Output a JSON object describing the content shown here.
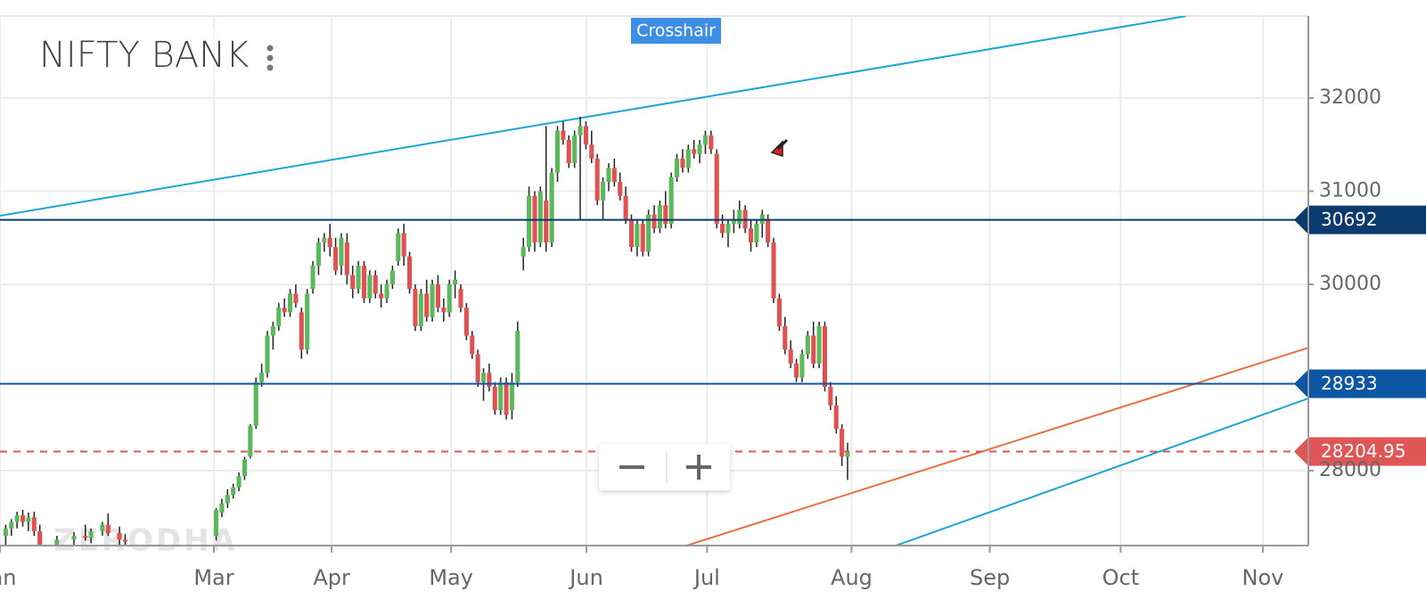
{
  "chart_data": {
    "type": "candlestick",
    "title": "NIFTY BANK",
    "crosshair_label": "Crosshair",
    "watermark": "ZERODHA",
    "up_color": "#5cb85c",
    "down_color": "#e05252",
    "grid": true,
    "xlim": [
      0,
      230
    ],
    "xticks": [
      {
        "value": 0,
        "label": "Jan"
      },
      {
        "value": 37.6,
        "label": "Mar"
      },
      {
        "value": 58.3,
        "label": "Apr"
      },
      {
        "value": 79.3,
        "label": "May"
      },
      {
        "value": 103.1,
        "label": "Jun"
      },
      {
        "value": 124.3,
        "label": "Jul"
      },
      {
        "value": 149.7,
        "label": "Aug"
      },
      {
        "value": 174,
        "label": "Sep"
      },
      {
        "value": 197,
        "label": "Oct"
      },
      {
        "value": 222,
        "label": "Nov"
      }
    ],
    "ylim": [
      27196,
      32880
    ],
    "yticks": [
      28000,
      30000,
      31000,
      32000
    ],
    "trend_lines": [
      {
        "color": "#1ea5d4",
        "x": [
          0,
          208.5
        ],
        "y": [
          30737,
          32880
        ]
      },
      {
        "color": "#e8703f",
        "x": [
          120.7,
          230
        ],
        "y": [
          27196,
          29320
        ]
      },
      {
        "color": "#1ea5d4",
        "x": [
          157.5,
          230
        ],
        "y": [
          27196,
          28775
        ]
      }
    ],
    "price_lines": [
      {
        "value": 30692,
        "color": "#0b3a6e",
        "dashed": false
      },
      {
        "value": 28933,
        "color": "#0d56a3",
        "dashed": false
      },
      {
        "value": 28204.95,
        "color": "#e05555",
        "dashed": true
      }
    ],
    "candles": [
      [
        1,
        27300,
        27420,
        27200,
        27380
      ],
      [
        2,
        27380,
        27480,
        27300,
        27450
      ],
      [
        3,
        27450,
        27560,
        27380,
        27520
      ],
      [
        4,
        27520,
        27580,
        27400,
        27450
      ],
      [
        5,
        27450,
        27550,
        27350,
        27500
      ],
      [
        6,
        27500,
        27560,
        27300,
        27350
      ],
      [
        7,
        27350,
        27420,
        27150,
        27200
      ],
      [
        10,
        27200,
        27300,
        27150,
        27260
      ],
      [
        13,
        27260,
        27340,
        27200,
        27300
      ],
      [
        15,
        27300,
        27420,
        27250,
        27280
      ],
      [
        16,
        27280,
        27380,
        27220,
        27350
      ],
      [
        18,
        27350,
        27450,
        27300,
        27420
      ],
      [
        19,
        27420,
        27540,
        27300,
        27330
      ],
      [
        21,
        27330,
        27400,
        27200,
        27260
      ],
      [
        22,
        27260,
        27320,
        27200,
        27240
      ],
      [
        38,
        27300,
        27600,
        27250,
        27580
      ],
      [
        39,
        27550,
        27700,
        27500,
        27650
      ],
      [
        40,
        27650,
        27800,
        27600,
        27740
      ],
      [
        41,
        27740,
        27860,
        27700,
        27820
      ],
      [
        42,
        27820,
        27980,
        27780,
        27940
      ],
      [
        43,
        27940,
        28150,
        27900,
        28120
      ],
      [
        44,
        28150,
        28500,
        28130,
        28480
      ],
      [
        45,
        28480,
        29000,
        28450,
        28950
      ],
      [
        46,
        28950,
        29150,
        28900,
        29050
      ],
      [
        47,
        29050,
        29500,
        29000,
        29450
      ],
      [
        48,
        29450,
        29600,
        29300,
        29550
      ],
      [
        49,
        29550,
        29800,
        29500,
        29750
      ],
      [
        50,
        29750,
        29850,
        29650,
        29700
      ],
      [
        51,
        29700,
        29950,
        29650,
        29900
      ],
      [
        52,
        29900,
        30000,
        29750,
        29800
      ],
      [
        53,
        29700,
        29750,
        29200,
        29300
      ],
      [
        54,
        29300,
        29950,
        29250,
        29900
      ],
      [
        55,
        29950,
        30250,
        29900,
        30200
      ],
      [
        56,
        30200,
        30500,
        30100,
        30450
      ],
      [
        57,
        30450,
        30550,
        30350,
        30500
      ],
      [
        58,
        30500,
        30650,
        30300,
        30400
      ],
      [
        59,
        30400,
        30500,
        30100,
        30150
      ],
      [
        60,
        30200,
        30550,
        30100,
        30500
      ],
      [
        61,
        30450,
        30550,
        30000,
        30100
      ],
      [
        62,
        30100,
        30200,
        29850,
        29950
      ],
      [
        63,
        29950,
        30250,
        29900,
        30200
      ],
      [
        64,
        30200,
        30250,
        29800,
        29850
      ],
      [
        65,
        29850,
        30150,
        29800,
        30100
      ],
      [
        66,
        30100,
        30150,
        29850,
        29900
      ],
      [
        67,
        29900,
        30000,
        29750,
        29850
      ],
      [
        68,
        29850,
        30050,
        29800,
        30000
      ],
      [
        69,
        30000,
        30200,
        29950,
        30150
      ],
      [
        70,
        30250,
        30600,
        30200,
        30550
      ],
      [
        71,
        30550,
        30650,
        30200,
        30300
      ],
      [
        72,
        30300,
        30350,
        29900,
        29950
      ],
      [
        73,
        29950,
        30000,
        29500,
        29550
      ],
      [
        74,
        29550,
        29950,
        29500,
        29900
      ],
      [
        75,
        29900,
        30050,
        29600,
        29650
      ],
      [
        76,
        29650,
        30050,
        29600,
        30000
      ],
      [
        77,
        30000,
        30100,
        29700,
        29750
      ],
      [
        78,
        29750,
        29850,
        29600,
        29700
      ],
      [
        79,
        29700,
        30050,
        29650,
        30000
      ],
      [
        80,
        30000,
        30150,
        29850,
        30050
      ],
      [
        81,
        29950,
        30000,
        29700,
        29750
      ],
      [
        82,
        29750,
        29800,
        29400,
        29450
      ],
      [
        83,
        29450,
        29500,
        29200,
        29250
      ],
      [
        84,
        29250,
        29300,
        28900,
        28950
      ],
      [
        85,
        28950,
        29100,
        28750,
        29050
      ],
      [
        86,
        29050,
        29150,
        28850,
        28900
      ],
      [
        87,
        28900,
        28950,
        28600,
        28650
      ],
      [
        88,
        28650,
        29000,
        28600,
        28950
      ],
      [
        89,
        28950,
        29000,
        28550,
        28600
      ],
      [
        90,
        28650,
        29050,
        28550,
        28950
      ],
      [
        91,
        28950,
        29600,
        28900,
        29500
      ],
      [
        92,
        30300,
        30500,
        30150,
        30400
      ],
      [
        93,
        30400,
        31050,
        30350,
        30950
      ],
      [
        94,
        30950,
        31000,
        30350,
        30450
      ],
      [
        95,
        30450,
        31050,
        30400,
        31000
      ],
      [
        96,
        30900,
        31700,
        30350,
        30450
      ],
      [
        97,
        30450,
        31250,
        30400,
        31200
      ],
      [
        98,
        31200,
        31700,
        31100,
        31650
      ],
      [
        99,
        31650,
        31750,
        31500,
        31550
      ],
      [
        100,
        31550,
        31600,
        31250,
        31300
      ],
      [
        101,
        31300,
        31650,
        31250,
        31600
      ],
      [
        102,
        31600,
        31800,
        30700,
        31700
      ],
      [
        103,
        31700,
        31750,
        31450,
        31500
      ],
      [
        104,
        31500,
        31650,
        31300,
        31350
      ],
      [
        105,
        31350,
        31400,
        30850,
        30900
      ],
      [
        106,
        30900,
        31150,
        30700,
        31100
      ],
      [
        107,
        31100,
        31300,
        31000,
        31250
      ],
      [
        108,
        31250,
        31350,
        31050,
        31100
      ],
      [
        109,
        31100,
        31200,
        30900,
        30950
      ],
      [
        110,
        30950,
        31050,
        30650,
        30700
      ],
      [
        111,
        30700,
        30750,
        30350,
        30400
      ],
      [
        112,
        30400,
        30700,
        30300,
        30650
      ],
      [
        113,
        30650,
        30700,
        30300,
        30350
      ],
      [
        114,
        30350,
        30800,
        30300,
        30750
      ],
      [
        115,
        30750,
        30850,
        30550,
        30600
      ],
      [
        116,
        30600,
        30900,
        30550,
        30850
      ],
      [
        117,
        30850,
        31000,
        30600,
        30650
      ],
      [
        118,
        30650,
        31200,
        30600,
        31150
      ],
      [
        119,
        31150,
        31400,
        31100,
        31350
      ],
      [
        120,
        31350,
        31450,
        31200,
        31250
      ],
      [
        121,
        31250,
        31500,
        31200,
        31450
      ],
      [
        122,
        31450,
        31550,
        31350,
        31400
      ],
      [
        123,
        31400,
        31550,
        31300,
        31500
      ],
      [
        124,
        31500,
        31650,
        31400,
        31600
      ],
      [
        125,
        31600,
        31650,
        31400,
        31450
      ],
      [
        126,
        31400,
        31450,
        30600,
        30650
      ],
      [
        127,
        30650,
        30750,
        30500,
        30550
      ],
      [
        128,
        30550,
        30700,
        30400,
        30650
      ],
      [
        129,
        30650,
        30800,
        30550,
        30700
      ],
      [
        130,
        30650,
        30900,
        30600,
        30800
      ],
      [
        131,
        30800,
        30850,
        30550,
        30600
      ],
      [
        132,
        30600,
        30700,
        30350,
        30450
      ],
      [
        133,
        30450,
        30700,
        30400,
        30650
      ],
      [
        134,
        30650,
        30800,
        30500,
        30750
      ],
      [
        135,
        30700,
        30750,
        30400,
        30450
      ],
      [
        136,
        30450,
        30500,
        29800,
        29850
      ],
      [
        137,
        29850,
        29900,
        29500,
        29550
      ],
      [
        138,
        29550,
        29650,
        29250,
        29300
      ],
      [
        139,
        29300,
        29400,
        29100,
        29150
      ],
      [
        140,
        29150,
        29200,
        28950,
        29000
      ],
      [
        141,
        29000,
        29300,
        28950,
        29250
      ],
      [
        142,
        29250,
        29500,
        29200,
        29450
      ],
      [
        143,
        29450,
        29600,
        29100,
        29150
      ],
      [
        144,
        29150,
        29600,
        29100,
        29550
      ],
      [
        145,
        29550,
        29600,
        28850,
        28900
      ],
      [
        146,
        28900,
        28950,
        28650,
        28700
      ],
      [
        147,
        28700,
        28800,
        28400,
        28450
      ],
      [
        148,
        28450,
        28500,
        28050,
        28150
      ],
      [
        149,
        28150,
        28300,
        27900,
        28204.95
      ]
    ]
  }
}
